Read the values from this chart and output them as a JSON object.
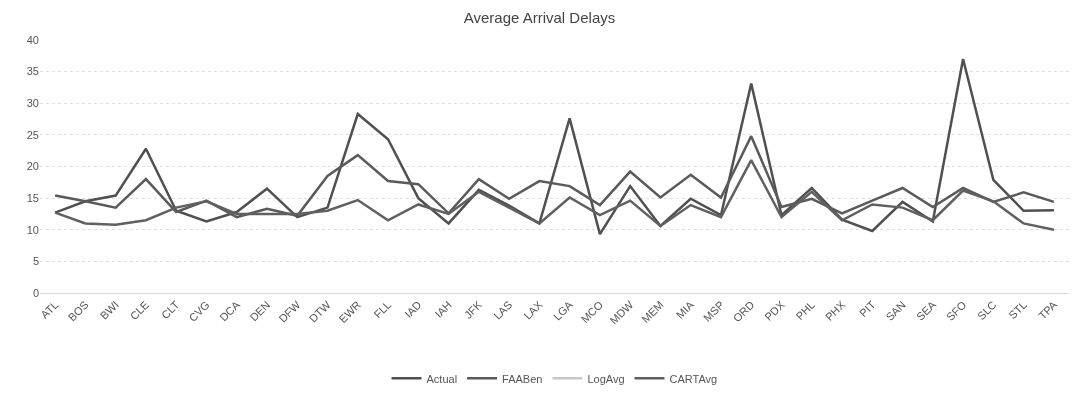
{
  "chart_data": {
    "type": "line",
    "title": "Average Arrival Delays",
    "categories": [
      "ATL",
      "BOS",
      "BWI",
      "CLE",
      "CLT",
      "CVG",
      "DCA",
      "DEN",
      "DFW",
      "DTW",
      "EWR",
      "FLL",
      "IAD",
      "IAH",
      "JFK",
      "LAS",
      "LAX",
      "LGA",
      "MCO",
      "MDW",
      "MEM",
      "MIA",
      "MSP",
      "ORD",
      "PDX",
      "PHL",
      "PHX",
      "PIT",
      "SAN",
      "SEA",
      "SFO",
      "SLC",
      "STL",
      "TPA"
    ],
    "series": [
      {
        "name": "Actual",
        "color": "#505050",
        "values": [
          12.7,
          14.5,
          15.4,
          22.8,
          13,
          11.3,
          12.8,
          16.5,
          12,
          13.5,
          28.3,
          24.3,
          15,
          11,
          16.3,
          13.8,
          11,
          27.6,
          9.3,
          16.9,
          10.6,
          14.9,
          12.3,
          33.1,
          12.3,
          16.6,
          11.6,
          9.8,
          14.4,
          11.3,
          37,
          17.9,
          13,
          13.1
        ]
      },
      {
        "name": "FAABen",
        "color": "#5a5a5a",
        "values": [
          15.4,
          14.5,
          13.5,
          18,
          12.8,
          14.6,
          12,
          13.3,
          12.2,
          18.5,
          21.8,
          17.7,
          17.2,
          12.6,
          18,
          14.9,
          17.7,
          16.9,
          13.9,
          19.2,
          15.1,
          18.7,
          15.1,
          24.8,
          13.6,
          14.9,
          12.6,
          14.6,
          16.6,
          13.6,
          16.6,
          14.4,
          15.9,
          14.4
        ]
      },
      {
        "name": "LogAvg",
        "color": "#c8c8c8",
        "values": [
          null,
          null,
          null,
          null,
          null,
          null,
          null,
          null,
          null,
          null,
          null,
          null,
          null,
          null,
          null,
          null,
          null,
          null,
          null,
          null,
          null,
          null,
          null,
          null,
          null,
          null,
          null,
          null,
          null,
          null,
          null,
          null,
          null,
          null
        ]
      },
      {
        "name": "CARTAvg",
        "color": "#606060",
        "values": [
          12.7,
          11,
          10.8,
          11.5,
          13.5,
          14.5,
          12.5,
          12.5,
          12.5,
          13,
          14.7,
          11.5,
          14,
          12.5,
          16,
          13.5,
          11,
          15.1,
          12.3,
          14.6,
          10.6,
          13.9,
          12,
          21,
          12,
          16,
          11.5,
          14,
          13.5,
          11.5,
          16.2,
          14.5,
          11,
          10
        ]
      }
    ],
    "ylim": [
      0,
      40
    ],
    "yticks": [
      0,
      5,
      10,
      15,
      20,
      25,
      30,
      35,
      40
    ],
    "grid": "y",
    "legend": "bottom",
    "marker": "none",
    "line_style": "solid"
  }
}
